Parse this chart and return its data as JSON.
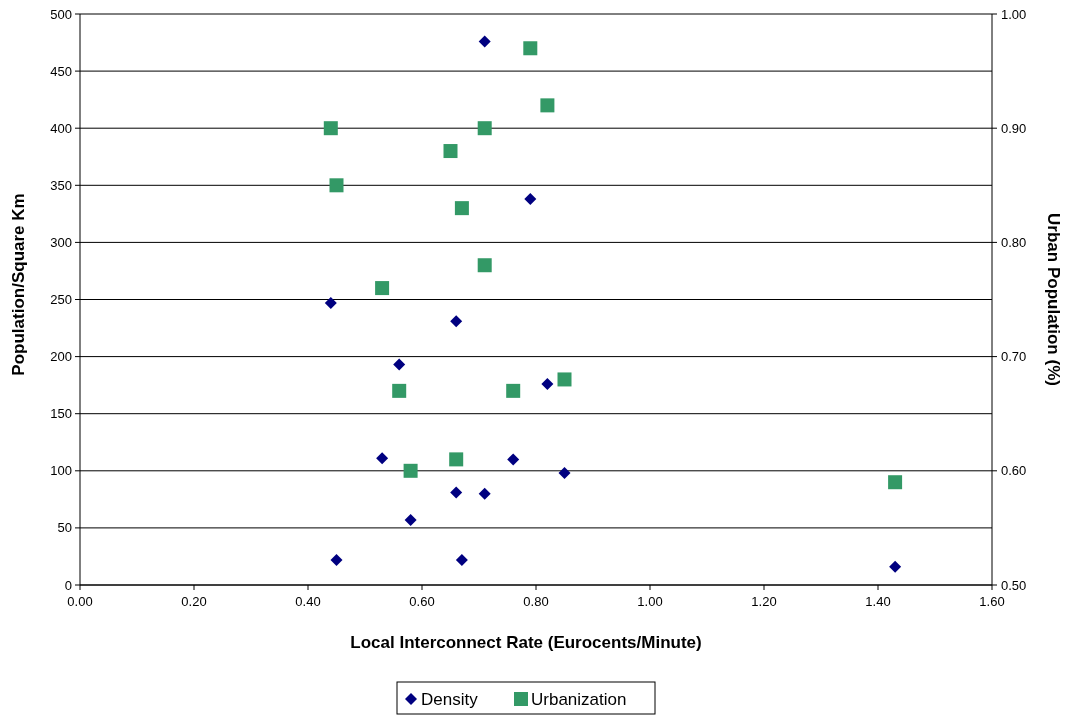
{
  "chart_data": {
    "type": "scatter",
    "xlabel": "Local Interconnect Rate (Eurocents/Minute)",
    "ylabel": "Population/Square Km",
    "y2label": "Urban Population (%)",
    "xlim": [
      0,
      1.6
    ],
    "xticks": [
      {
        "value": 0,
        "label": "0.00"
      },
      {
        "value": 0.2,
        "label": "0.20"
      },
      {
        "value": 0.4,
        "label": "0.40"
      },
      {
        "value": 0.6,
        "label": "0.60"
      },
      {
        "value": 0.8,
        "label": "0.80"
      },
      {
        "value": 1,
        "label": "1.00"
      },
      {
        "value": 1.2,
        "label": "1.20"
      },
      {
        "value": 1.4,
        "label": "1.40"
      },
      {
        "value": 1.6,
        "label": "1.60"
      }
    ],
    "ylim": [
      0,
      500
    ],
    "yticks": [
      0,
      50,
      100,
      150,
      200,
      250,
      300,
      350,
      400,
      450,
      500
    ],
    "y2lim": [
      0.5,
      1
    ],
    "y2ticks": [
      {
        "value": 0.5,
        "label": "0.50"
      },
      {
        "value": 0.6,
        "label": "0.60"
      },
      {
        "value": 0.7,
        "label": "0.70"
      },
      {
        "value": 0.8,
        "label": "0.80"
      },
      {
        "value": 0.9,
        "label": "0.90"
      },
      {
        "value": 1,
        "label": "1.00"
      }
    ],
    "grid": "y",
    "legend": "bottom",
    "series": [
      {
        "name": "Density",
        "color": "#000080",
        "marker": "diamond",
        "x": [
          0.71,
          0.79,
          0.44,
          0.66,
          0.56,
          0.82,
          0.53,
          0.76,
          0.85,
          0.66,
          0.71,
          0.58,
          0.45,
          0.67,
          1.43
        ],
        "values": [
          476,
          338,
          247,
          231,
          193,
          176,
          111,
          110,
          98,
          81,
          80,
          57,
          22,
          22,
          16
        ]
      },
      {
        "name": "Urbanization",
        "color": "#339966",
        "marker": "square",
        "axis": "y2",
        "x": [
          0.79,
          0.82,
          0.44,
          0.71,
          0.65,
          0.45,
          0.67,
          0.71,
          0.53,
          0.56,
          0.76,
          0.85,
          0.66,
          0.58,
          1.43
        ],
        "values": [
          0.97,
          0.92,
          0.9,
          0.9,
          0.88,
          0.85,
          0.83,
          0.78,
          0.76,
          0.67,
          0.67,
          0.68,
          0.61,
          0.6,
          0.59
        ]
      }
    ]
  }
}
